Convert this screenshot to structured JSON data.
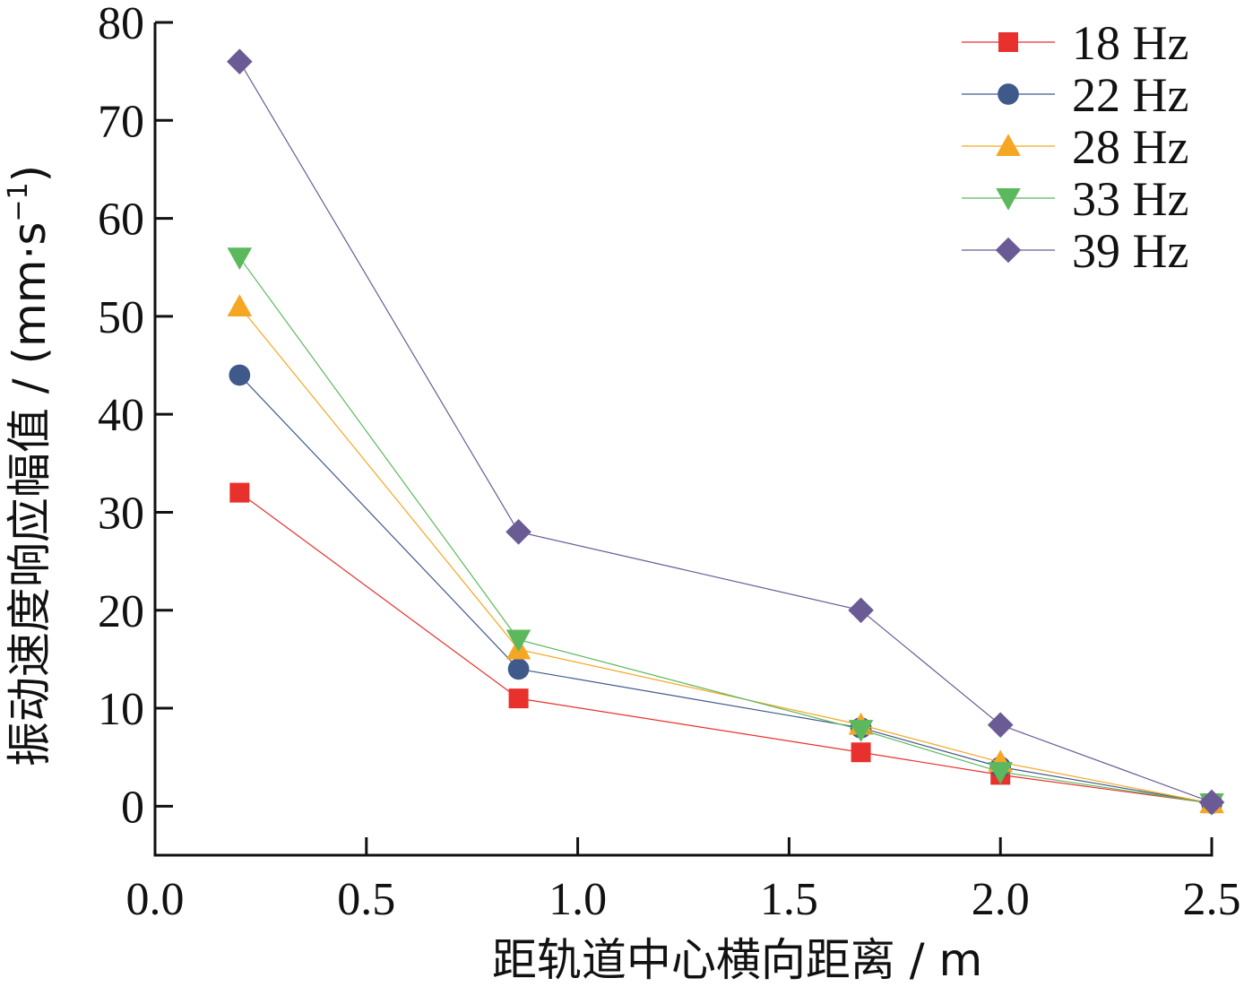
{
  "chart_data": {
    "type": "line",
    "xlabel": "距轨道中心横向距离 / m",
    "ylabel_main": "振动速度响应幅值 / (mm·s",
    "ylabel_sup": "−1",
    "ylabel_tail": ")",
    "xlim": [
      0.0,
      2.5
    ],
    "ylim": [
      -5,
      80
    ],
    "x_ticks": [
      0.0,
      0.5,
      1.0,
      1.5,
      2.0,
      2.5
    ],
    "x_tick_labels": [
      "0.0",
      "0.5",
      "1.0",
      "1.5",
      "2.0",
      "2.5"
    ],
    "y_ticks": [
      0,
      10,
      20,
      30,
      40,
      50,
      60,
      70,
      80
    ],
    "y_tick_labels": [
      "0",
      "10",
      "20",
      "30",
      "40",
      "50",
      "60",
      "70",
      "80"
    ],
    "grid": false,
    "legend_position": "top-right",
    "x": [
      0.2,
      0.86,
      1.67,
      2.0,
      2.5
    ],
    "series": [
      {
        "name": "18 Hz",
        "color": "#e8312c",
        "marker": "square",
        "values": [
          32,
          11,
          5.5,
          3.2,
          0.3
        ]
      },
      {
        "name": "22 Hz",
        "color": "#3f5a8a",
        "marker": "circle",
        "values": [
          44,
          14,
          8,
          4,
          0.3
        ]
      },
      {
        "name": "28 Hz",
        "color": "#f5a623",
        "marker": "triangle-up",
        "values": [
          51,
          16,
          8.3,
          4.5,
          0.3
        ]
      },
      {
        "name": "33 Hz",
        "color": "#5cb85c",
        "marker": "triangle-down",
        "values": [
          56,
          17,
          7.8,
          3.5,
          0.3
        ]
      },
      {
        "name": "39 Hz",
        "color": "#6b5b95",
        "marker": "diamond",
        "values": [
          76,
          28,
          20,
          8.3,
          0.4
        ]
      }
    ]
  }
}
